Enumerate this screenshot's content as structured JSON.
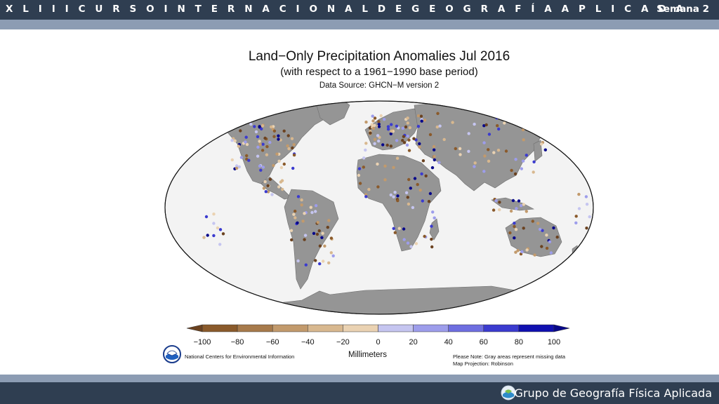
{
  "header": {
    "course_title": "X L I I I  C U R S O  I N T E R N A C I O N A L  D E G E O G R A F Í A  A P L I C A D A",
    "week": "Semana 2"
  },
  "footer": {
    "group_name": "Grupo de Geografía Física Aplicada",
    "logo_icon": "globe-logo-icon"
  },
  "map": {
    "title": "Land−Only Precipitation Anomalies Jul 2016",
    "subtitle": "(with respect to a 1961−1990 base period)",
    "source": "Data Source: GHCN−M version 2",
    "land_color": "#959595",
    "ocean_color": "#f3f3f3",
    "projection_note": "Map Projection: Robinson",
    "missing_note": "Please Note: Gray areas represent missing data",
    "credit": "National Centers for Environmental Information",
    "credit_logo_icon": "noaa-logo-icon"
  },
  "legend": {
    "units": "Millimeters",
    "ticks": [
      "−100",
      "−80",
      "−60",
      "−40",
      "−20",
      "0",
      "20",
      "40",
      "60",
      "80",
      "100"
    ],
    "colors": [
      "#8a5a2b",
      "#a77a4b",
      "#c29a6c",
      "#d8b88f",
      "#ead2b2",
      "#c5c5f0",
      "#9d9deb",
      "#6e6ee0",
      "#3b3bcf",
      "#1010b0"
    ],
    "low_end_color": "#6b4220",
    "high_end_color": "#08088a"
  }
}
